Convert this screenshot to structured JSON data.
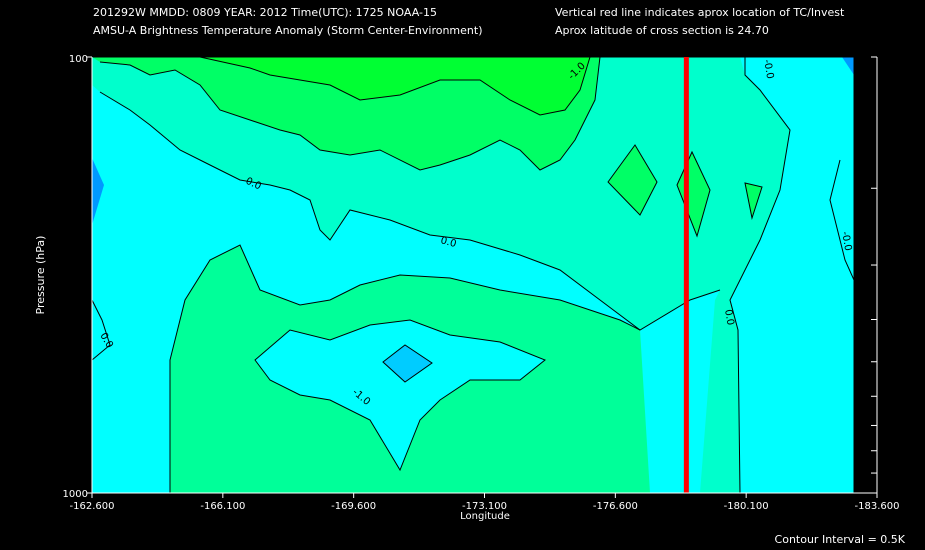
{
  "header": {
    "line1_left": "201292W  MMDD: 0809 YEAR: 2012 Time(UTC): 1725 NOAA-15",
    "line2_left": "AMSU-A Brightness Temperature Anomaly (Storm Center-Environment)",
    "line1_right": "Vertical red line indicates aprox location of TC/Invest",
    "line2_right": "Aprox latitude of cross section is 24.70"
  },
  "footer": {
    "contour_interval": "Contour Interval = 0.5K"
  },
  "colors": {
    "background": "#000000",
    "band_cyan": "#00ffff",
    "band_aqua": "#00ffcc",
    "band_seafoam": "#00ff99",
    "band_green": "#00ff66",
    "band_bright_green": "#00ff33",
    "low_blue": "#00ccff",
    "dark_blue": "#0099ff",
    "storm_line": "#ff0000"
  },
  "chart_data": {
    "type": "heatmap",
    "title": "AMSU-A Brightness Temperature Anomaly (Storm Center-Environment)",
    "xlabel": "Longitude",
    "ylabel": "Pressure (hPa)",
    "x_ticks": [
      "-162.600",
      "-166.100",
      "-169.600",
      "-173.100",
      "-176.600",
      "-180.100",
      "-183.600"
    ],
    "x_range": [
      -162.6,
      -183.6
    ],
    "y_ticks": [
      "100",
      "1000"
    ],
    "y_range": [
      100,
      1000
    ],
    "y_scale": "log",
    "contour_interval_K": 0.5,
    "storm_longitude": -178.5,
    "contour_labels": [
      "-1.0",
      "0.0",
      "0.0",
      "0.0",
      "0.0",
      "-0.0",
      "-0.0",
      "-1.0",
      "-0.0"
    ]
  }
}
